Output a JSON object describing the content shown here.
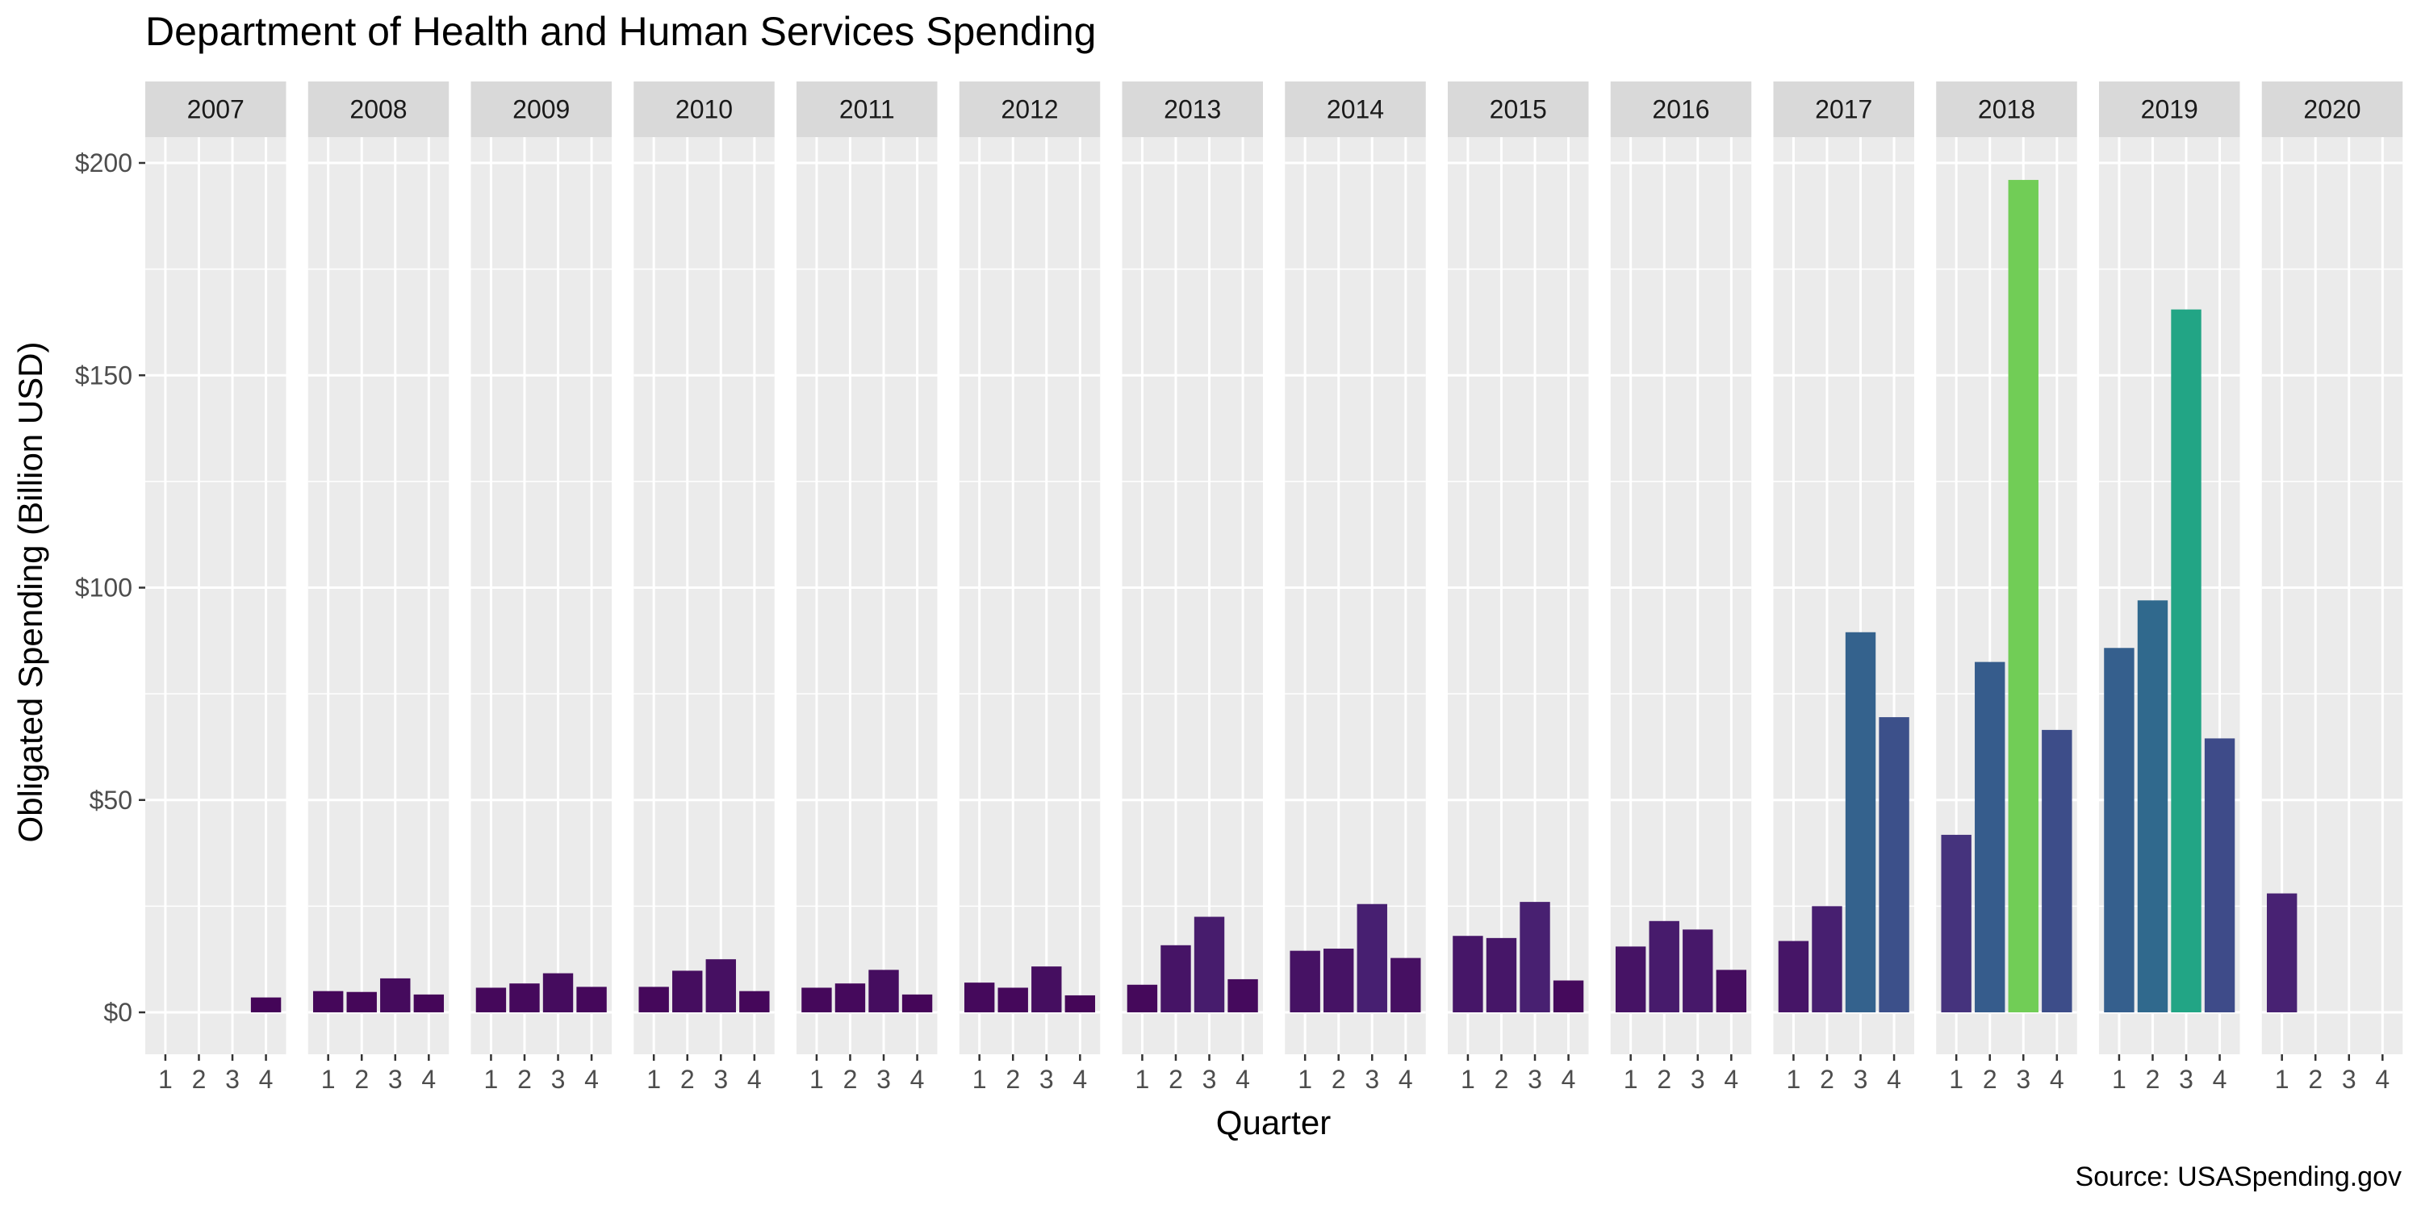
{
  "chart_data": {
    "type": "bar",
    "title": "Department of Health and Human Services Spending",
    "xlabel": "Quarter",
    "ylabel": "Obligated Spending (Billion USD)",
    "caption": "Source: USASpending.gov",
    "ylim": [
      0,
      210
    ],
    "yticks": [
      0,
      50,
      100,
      150,
      200
    ],
    "ytick_labels": [
      "$0",
      "$50",
      "$100",
      "$150",
      "$200"
    ],
    "quarters": [
      "1",
      "2",
      "3",
      "4"
    ],
    "grid": true,
    "legend": "none",
    "color_scale": "viridis",
    "color_range": [
      0,
      200
    ],
    "facets": [
      {
        "year": "2007",
        "values": [
          null,
          null,
          null,
          3.5
        ]
      },
      {
        "year": "2008",
        "values": [
          5.0,
          4.8,
          8.0,
          4.2
        ]
      },
      {
        "year": "2009",
        "values": [
          5.8,
          6.8,
          9.2,
          6.0
        ]
      },
      {
        "year": "2010",
        "values": [
          6.0,
          9.8,
          12.5,
          5.0
        ]
      },
      {
        "year": "2011",
        "values": [
          5.8,
          6.8,
          10.0,
          4.2
        ]
      },
      {
        "year": "2012",
        "values": [
          7.0,
          5.8,
          10.8,
          4.0
        ]
      },
      {
        "year": "2013",
        "values": [
          6.5,
          15.8,
          22.5,
          7.8
        ]
      },
      {
        "year": "2014",
        "values": [
          14.5,
          15.0,
          25.5,
          12.8
        ]
      },
      {
        "year": "2015",
        "values": [
          18.0,
          17.5,
          26.0,
          7.5
        ]
      },
      {
        "year": "2016",
        "values": [
          15.5,
          21.5,
          19.5,
          10.0
        ]
      },
      {
        "year": "2017",
        "values": [
          16.8,
          25.0,
          89.5,
          69.5
        ]
      },
      {
        "year": "2018",
        "values": [
          41.8,
          82.5,
          196.0,
          66.5
        ]
      },
      {
        "year": "2019",
        "values": [
          85.8,
          97.0,
          165.5,
          64.5
        ]
      },
      {
        "year": "2020",
        "values": [
          28.0,
          null,
          null,
          null
        ]
      }
    ]
  }
}
